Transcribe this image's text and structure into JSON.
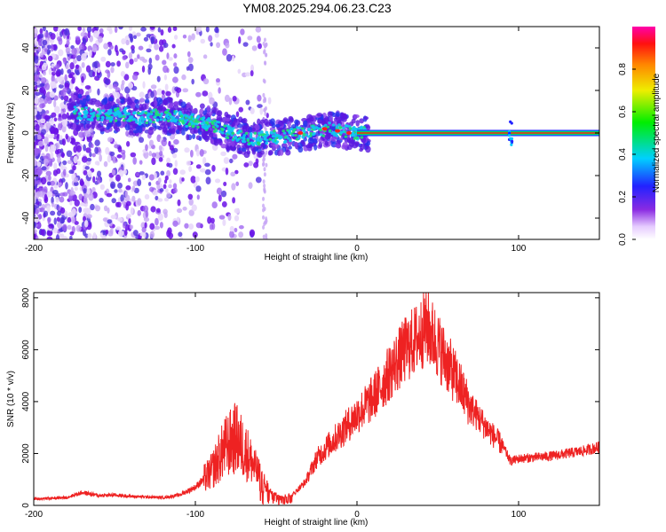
{
  "title": "YM08.2025.294.06.23.C23",
  "colors": {
    "axis": "#000000",
    "ridge": "#ff1a3a",
    "snr_line": "#ee2222",
    "dots": "#6a10e8"
  },
  "chart_data": [
    {
      "type": "heatmap",
      "panel": "spectrogram",
      "xlabel": "Height of straight line (km)",
      "ylabel": "Frequency (Hz)",
      "xlim": [
        -200,
        150
      ],
      "ylim": [
        -50,
        50
      ],
      "xticks": [
        -200,
        -100,
        0,
        100
      ],
      "xtick_labels": [
        "-200",
        "-100",
        "0",
        "100"
      ],
      "yticks": [
        -40,
        -20,
        0,
        20,
        40
      ],
      "ytick_labels": [
        "-40",
        "-20",
        "0",
        "20",
        "40"
      ],
      "ridge": {
        "x": [
          -175,
          -165,
          -155,
          -145,
          -135,
          -125,
          -115,
          -105,
          -95,
          -85,
          -75,
          -65,
          -55,
          -45,
          -35,
          -25,
          -15,
          -8,
          0,
          50,
          100,
          150
        ],
        "y": [
          10,
          9,
          8,
          9,
          7,
          8,
          8,
          6,
          5,
          2,
          -1,
          -3,
          -2,
          -2,
          0,
          1,
          2,
          1,
          0,
          0,
          0,
          0
        ]
      },
      "colorbar": {
        "label": "Normalized spectral amplitude",
        "range": [
          0,
          1
        ],
        "ticks": [
          0.0,
          0.2,
          0.4,
          0.6,
          0.8
        ],
        "tick_labels": [
          "0.0",
          "0.2",
          "0.4",
          "0.6",
          "0.8"
        ]
      }
    },
    {
      "type": "line",
      "panel": "snr",
      "xlabel": "Height of straight line (km)",
      "ylabel": "SNR (10 * v/v)",
      "xlim": [
        -200,
        150
      ],
      "ylim": [
        0,
        8200
      ],
      "xticks": [
        -200,
        -100,
        0,
        100
      ],
      "xtick_labels": [
        "-200",
        "-100",
        "0",
        "100"
      ],
      "yticks": [
        0,
        2000,
        4000,
        6000,
        8000
      ],
      "ytick_labels": [
        "0",
        "2000",
        "4000",
        "6000",
        "8000"
      ],
      "series": [
        {
          "name": "SNR",
          "x": [
            -200,
            -180,
            -170,
            -160,
            -150,
            -140,
            -120,
            -110,
            -100,
            -90,
            -82,
            -75,
            -68,
            -62,
            -55,
            -48,
            -40,
            -32,
            -25,
            -18,
            -10,
            0,
            8,
            15,
            22,
            30,
            38,
            43,
            48,
            55,
            62,
            70,
            80,
            90,
            95,
            100,
            110,
            120,
            130,
            140,
            150
          ],
          "y": [
            250,
            300,
            500,
            380,
            400,
            350,
            300,
            400,
            700,
            1300,
            2200,
            2600,
            2000,
            1300,
            600,
            350,
            400,
            900,
            1800,
            2300,
            2800,
            3500,
            4000,
            4600,
            5300,
            6000,
            6500,
            6900,
            6400,
            5600,
            4800,
            3800,
            3000,
            2300,
            1700,
            1800,
            1850,
            1900,
            2000,
            2100,
            2250
          ]
        }
      ]
    }
  ]
}
